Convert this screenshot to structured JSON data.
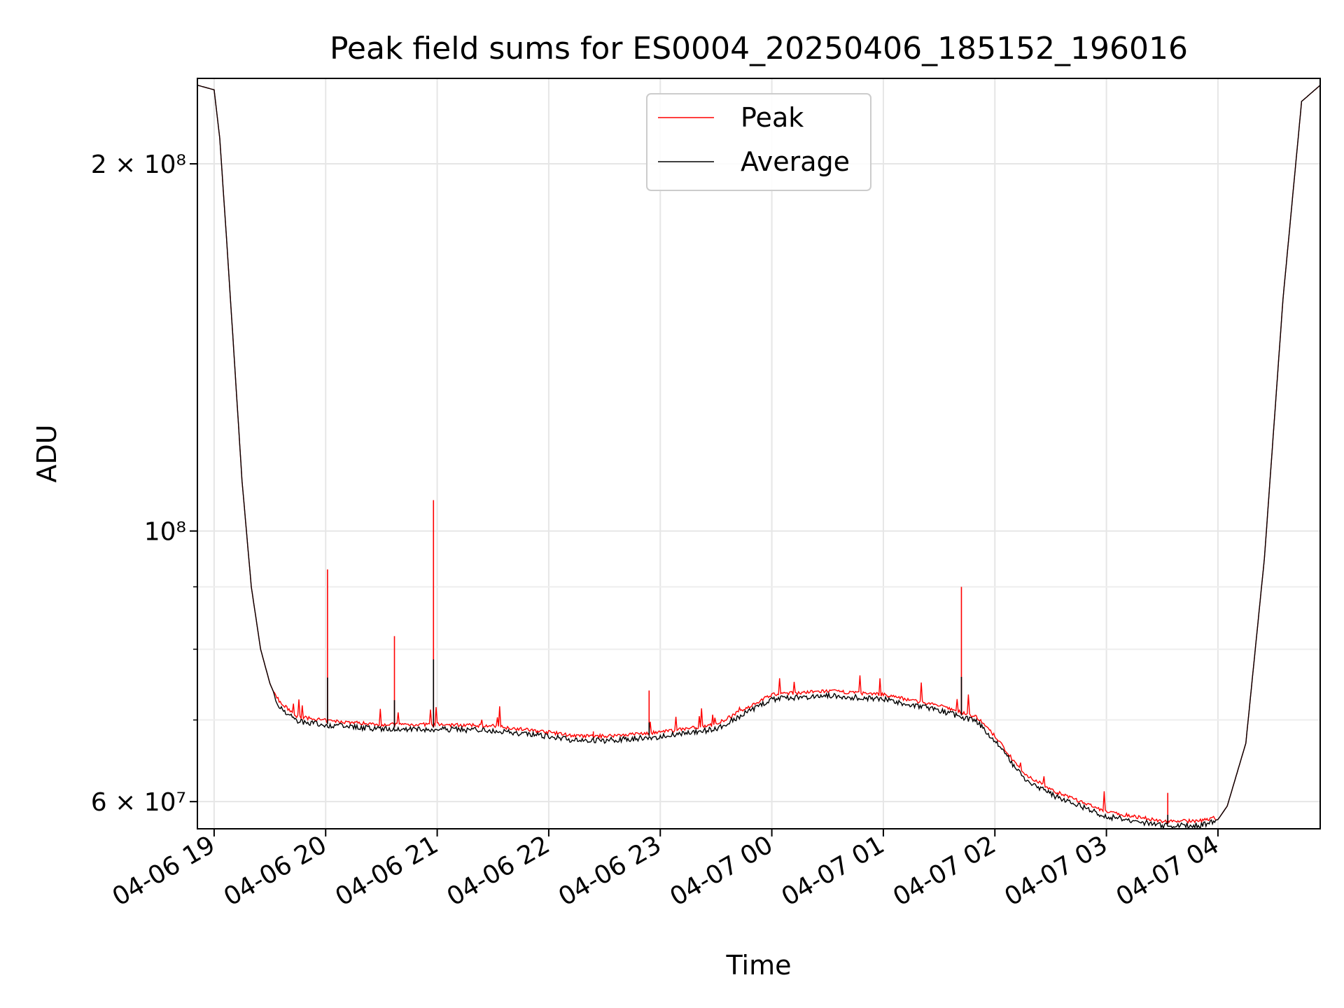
{
  "chart_data": {
    "type": "line",
    "title": "Peak field sums for ES0004_20250406_185152_196016",
    "xlabel": "Time",
    "ylabel": "ADU",
    "y_scale": "log",
    "xlim": [
      "2025-04-06 18:51",
      "2025-04-07 04:55"
    ],
    "ylim": [
      57000000,
      235000000
    ],
    "grid": true,
    "legend": {
      "position": "upper-center",
      "entries": [
        "Peak",
        "Average"
      ]
    },
    "x_ticks": [
      "04-06 19",
      "04-06 20",
      "04-06 21",
      "04-06 22",
      "04-06 23",
      "04-07 00",
      "04-07 01",
      "04-07 02",
      "04-07 03",
      "04-07 04"
    ],
    "y_ticks": [
      {
        "value": 60000000,
        "label": "6 × 10⁷"
      },
      {
        "value": 100000000,
        "label": "10⁸"
      },
      {
        "value": 200000000,
        "label": "2 × 10⁸"
      }
    ],
    "series": [
      {
        "name": "Average",
        "color": "#000000",
        "x": [
          "2025-04-06 18:51",
          "2025-04-06 19:00",
          "2025-04-06 19:03",
          "2025-04-06 19:06",
          "2025-04-06 19:10",
          "2025-04-06 19:15",
          "2025-04-06 19:20",
          "2025-04-06 19:25",
          "2025-04-06 19:30",
          "2025-04-06 19:35",
          "2025-04-06 19:45",
          "2025-04-06 20:00",
          "2025-04-06 20:30",
          "2025-04-06 21:00",
          "2025-04-06 21:30",
          "2025-04-06 22:00",
          "2025-04-06 22:15",
          "2025-04-06 22:30",
          "2025-04-06 23:00",
          "2025-04-06 23:30",
          "2025-04-06 23:45",
          "2025-04-07 00:00",
          "2025-04-07 00:30",
          "2025-04-07 01:00",
          "2025-04-07 01:30",
          "2025-04-07 01:50",
          "2025-04-07 02:00",
          "2025-04-07 02:15",
          "2025-04-07 02:30",
          "2025-04-07 03:00",
          "2025-04-07 03:30",
          "2025-04-07 03:50",
          "2025-04-07 04:00",
          "2025-04-07 04:05",
          "2025-04-07 04:15",
          "2025-04-07 04:25",
          "2025-04-07 04:35",
          "2025-04-07 04:45",
          "2025-04-07 04:55"
        ],
        "y": [
          232000000,
          230000000,
          210000000,
          180000000,
          145000000,
          110000000,
          90000000,
          80000000,
          75000000,
          72000000,
          70000000,
          69500000,
          69000000,
          69000000,
          68800000,
          68000000,
          67500000,
          67500000,
          68000000,
          69000000,
          71000000,
          73000000,
          73500000,
          73000000,
          71500000,
          70000000,
          67500000,
          63000000,
          61000000,
          58500000,
          57500000,
          57500000,
          58000000,
          59500000,
          67000000,
          95000000,
          155000000,
          225000000,
          232000000
        ]
      },
      {
        "name": "Peak",
        "color": "#ff0000",
        "spikes": [
          {
            "x": "2025-04-06 20:01",
            "y": 93000000
          },
          {
            "x": "2025-04-06 20:37",
            "y": 82000000
          },
          {
            "x": "2025-04-06 20:58",
            "y": 106000000
          },
          {
            "x": "2025-04-06 22:24",
            "y": 68500000
          },
          {
            "x": "2025-04-06 22:54",
            "y": 74000000
          },
          {
            "x": "2025-04-07 01:42",
            "y": 90000000
          },
          {
            "x": "2025-04-07 03:33",
            "y": 61000000
          }
        ]
      }
    ]
  }
}
